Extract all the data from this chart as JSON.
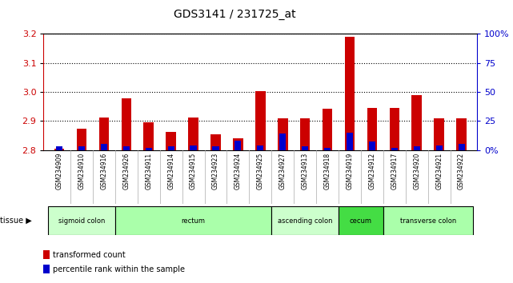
{
  "title": "GDS3141 / 231725_at",
  "samples": [
    "GSM234909",
    "GSM234910",
    "GSM234916",
    "GSM234926",
    "GSM234911",
    "GSM234914",
    "GSM234915",
    "GSM234923",
    "GSM234924",
    "GSM234925",
    "GSM234927",
    "GSM234913",
    "GSM234918",
    "GSM234919",
    "GSM234912",
    "GSM234917",
    "GSM234920",
    "GSM234921",
    "GSM234922"
  ],
  "red_values": [
    2.805,
    2.873,
    2.912,
    2.978,
    2.895,
    2.862,
    2.912,
    2.855,
    2.84,
    3.003,
    2.91,
    2.908,
    2.942,
    3.19,
    2.945,
    2.944,
    2.99,
    2.91,
    2.91
  ],
  "blue_values": [
    3,
    3,
    5,
    3,
    2,
    3,
    4,
    3,
    8,
    4,
    14,
    3,
    2,
    15,
    7,
    2,
    3,
    4,
    5
  ],
  "ymin": 2.8,
  "ymax": 3.2,
  "yticks": [
    2.8,
    2.9,
    3.0,
    3.1,
    3.2
  ],
  "right_yticks": [
    0,
    25,
    50,
    75,
    100
  ],
  "right_yticklabels": [
    "0%",
    "25",
    "50",
    "75",
    "100%"
  ],
  "tissue_groups": [
    {
      "label": "sigmoid colon",
      "start": 0,
      "end": 3,
      "color": "#ccffcc"
    },
    {
      "label": "rectum",
      "start": 3,
      "end": 10,
      "color": "#aaffaa"
    },
    {
      "label": "ascending colon",
      "start": 10,
      "end": 13,
      "color": "#ccffcc"
    },
    {
      "label": "cecum",
      "start": 13,
      "end": 15,
      "color": "#44dd44"
    },
    {
      "label": "transverse colon",
      "start": 15,
      "end": 19,
      "color": "#aaffaa"
    }
  ],
  "bar_color_red": "#cc0000",
  "bar_color_blue": "#0000cc",
  "bar_width": 0.45,
  "plot_bg": "#ffffff",
  "xticklabel_bg": "#d8d8d8",
  "left_axis_color": "#cc0000",
  "right_axis_color": "#0000cc",
  "grid_color": "#000000",
  "border_color": "#000000"
}
